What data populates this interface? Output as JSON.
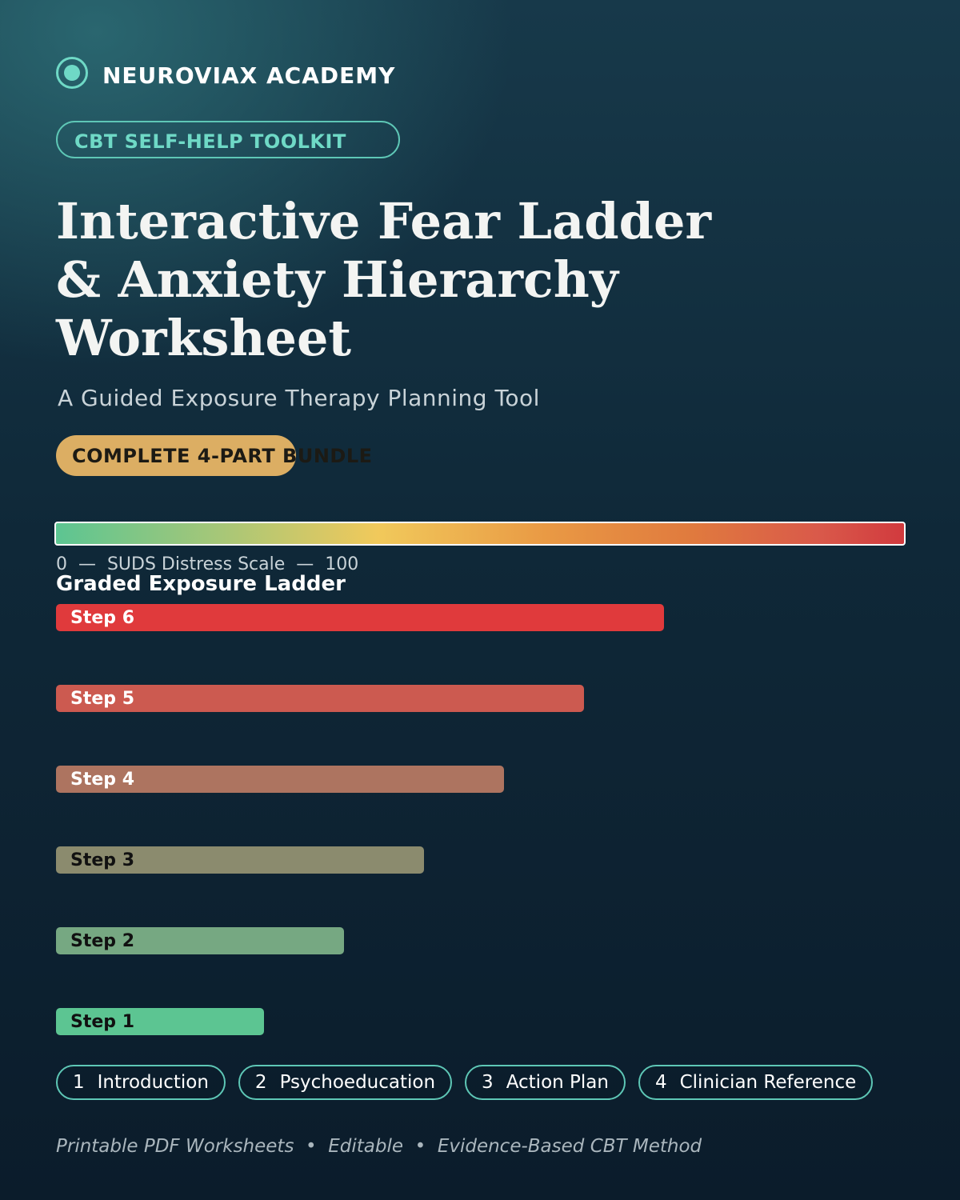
{
  "brand": "NEUROVIAX ACADEMY",
  "tag": "CBT SELF-HELP TOOLKIT",
  "title_lines": [
    "Interactive Fear Ladder",
    "& Anxiety Hierarchy",
    "Worksheet"
  ],
  "subtitle": "A Guided Exposure Therapy Planning Tool",
  "badge": "COMPLETE 4-PART BUNDLE",
  "scale_label": "0  —  SUDS Distress Scale  —  100",
  "ladder": {
    "title": "Graded Exposure Ladder",
    "steps": [
      "Step 6",
      "Step 5",
      "Step 4",
      "Step 3",
      "Step 2",
      "Step 1"
    ]
  },
  "parts": [
    {
      "number": "1",
      "label": "Introduction"
    },
    {
      "number": "2",
      "label": "Psychoeducation"
    },
    {
      "number": "3",
      "label": "Action Plan"
    },
    {
      "number": "4",
      "label": "Clinician Reference"
    }
  ],
  "footer": "Printable PDF Worksheets  •  Editable  •  Evidence-Based CBT Method"
}
